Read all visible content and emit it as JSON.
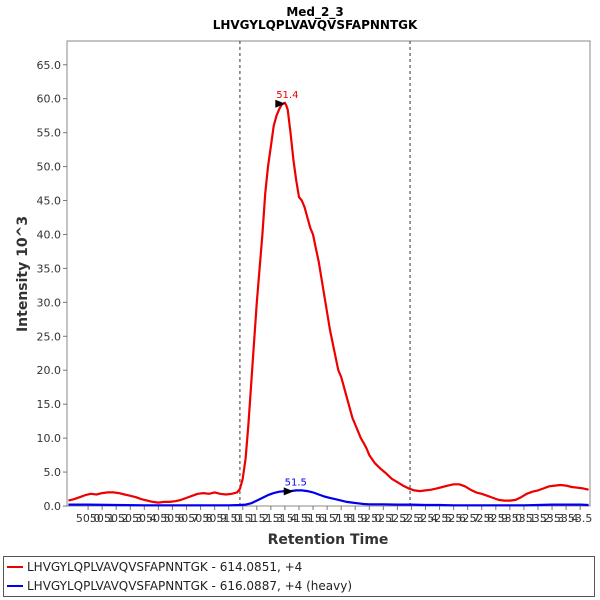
{
  "chart_data": {
    "type": "line",
    "title": "Med_2_3",
    "subtitle": "LHVGYLQPLVAVQVSFAPNNTGK",
    "xlabel": "Retention Time",
    "ylabel": "Intensity 10^3",
    "xlim": [
      49.85,
      53.57
    ],
    "ylim": [
      0,
      68.5
    ],
    "x_ticks": [
      "50.0",
      "50.1",
      "50.2",
      "50.3",
      "50.4",
      "50.5",
      "50.6",
      "50.7",
      "50.8",
      "50.9",
      "51.0",
      "51.1",
      "51.2",
      "51.3",
      "51.4",
      "51.5",
      "51.6",
      "51.7",
      "51.8",
      "51.9",
      "52.0",
      "52.1",
      "52.2",
      "52.3",
      "52.4",
      "52.5",
      "52.6",
      "52.7",
      "52.8",
      "52.9",
      "53.0",
      "53.1",
      "53.2",
      "53.3",
      "53.4",
      "53.5"
    ],
    "y_ticks": [
      "0.0",
      "5.0",
      "10.0",
      "15.0",
      "20.0",
      "25.0",
      "30.0",
      "35.0",
      "40.0",
      "45.0",
      "50.0",
      "55.0",
      "60.0",
      "65.0"
    ],
    "grid": false,
    "legend_position": "bottom",
    "boundaries": [
      51.08,
      52.29
    ],
    "series": [
      {
        "name": "LHVGYLQPLVAVQVSFAPNNTGK - 614.0851, +4",
        "color": "#ee0000",
        "peak_label": "51.4",
        "peak": [
          51.41,
          59.4
        ],
        "x": [
          49.86,
          49.9,
          49.94,
          49.98,
          50.02,
          50.06,
          50.1,
          50.14,
          50.18,
          50.22,
          50.26,
          50.3,
          50.34,
          50.38,
          50.42,
          50.46,
          50.5,
          50.54,
          50.58,
          50.62,
          50.66,
          50.7,
          50.74,
          50.78,
          50.82,
          50.86,
          50.9,
          50.94,
          50.98,
          51.02,
          51.06,
          51.08,
          51.1,
          51.12,
          51.14,
          51.16,
          51.18,
          51.2,
          51.22,
          51.24,
          51.26,
          51.28,
          51.3,
          51.32,
          51.34,
          51.36,
          51.38,
          51.4,
          51.41,
          51.42,
          51.44,
          51.46,
          51.48,
          51.5,
          51.52,
          51.54,
          51.56,
          51.58,
          51.6,
          51.62,
          51.64,
          51.66,
          51.68,
          51.7,
          51.72,
          51.74,
          51.76,
          51.78,
          51.8,
          51.82,
          51.84,
          51.86,
          51.88,
          51.9,
          51.92,
          51.94,
          51.96,
          51.98,
          52.0,
          52.04,
          52.08,
          52.12,
          52.16,
          52.2,
          52.24,
          52.28,
          52.32,
          52.36,
          52.4,
          52.44,
          52.48,
          52.52,
          52.56,
          52.6,
          52.64,
          52.68,
          52.72,
          52.76,
          52.8,
          52.84,
          52.88,
          52.92,
          52.96,
          53.0,
          53.04,
          53.08,
          53.12,
          53.16,
          53.2,
          53.24,
          53.28,
          53.32,
          53.36,
          53.4,
          53.44,
          53.48,
          53.52,
          53.56
        ],
        "y": [
          0.8,
          1.0,
          1.3,
          1.6,
          1.8,
          1.7,
          1.9,
          2.0,
          2.0,
          1.9,
          1.7,
          1.5,
          1.3,
          1.0,
          0.8,
          0.6,
          0.5,
          0.6,
          0.6,
          0.7,
          0.9,
          1.2,
          1.5,
          1.8,
          1.9,
          1.8,
          2.0,
          1.8,
          1.7,
          1.8,
          2.0,
          2.5,
          4.0,
          7.0,
          12.0,
          18.0,
          24.0,
          30.0,
          35.0,
          40.0,
          46.0,
          50.0,
          53.0,
          56.0,
          57.5,
          58.5,
          59.2,
          59.4,
          59.0,
          58.4,
          55.0,
          51.0,
          48.0,
          45.5,
          45.0,
          44.0,
          42.5,
          41.0,
          40.0,
          38.0,
          36.0,
          33.5,
          31.0,
          28.5,
          26.0,
          24.0,
          22.0,
          20.0,
          19.0,
          17.5,
          16.0,
          14.5,
          13.0,
          12.0,
          11.0,
          10.0,
          9.3,
          8.5,
          7.5,
          6.3,
          5.5,
          4.8,
          4.0,
          3.5,
          3.0,
          2.6,
          2.3,
          2.2,
          2.3,
          2.4,
          2.6,
          2.8,
          3.0,
          3.2,
          3.2,
          2.9,
          2.4,
          2.0,
          1.8,
          1.5,
          1.2,
          0.9,
          0.8,
          0.8,
          0.9,
          1.3,
          1.8,
          2.1,
          2.3,
          2.6,
          2.9,
          3.0,
          3.1,
          3.0,
          2.8,
          2.7,
          2.6,
          2.4
        ]
      },
      {
        "name": "LHVGYLQPLVAVQVSFAPNNTGK - 616.0887, +4 (heavy)",
        "color": "#0000ee",
        "peak_label": "51.5",
        "peak": [
          51.47,
          2.3
        ],
        "x": [
          49.86,
          50.0,
          50.2,
          50.4,
          50.6,
          50.8,
          51.0,
          51.08,
          51.12,
          51.16,
          51.2,
          51.24,
          51.28,
          51.32,
          51.36,
          51.4,
          51.44,
          51.48,
          51.52,
          51.56,
          51.6,
          51.64,
          51.68,
          51.72,
          51.76,
          51.8,
          51.84,
          51.88,
          51.92,
          51.96,
          52.0,
          52.1,
          52.2,
          52.3,
          52.4,
          52.5,
          52.6,
          52.7,
          52.8,
          52.9,
          53.0,
          53.1,
          53.2,
          53.3,
          53.4,
          53.5,
          53.56
        ],
        "y": [
          0.2,
          0.2,
          0.15,
          0.1,
          0.1,
          0.1,
          0.1,
          0.15,
          0.2,
          0.4,
          0.8,
          1.2,
          1.6,
          1.9,
          2.1,
          2.2,
          2.2,
          2.3,
          2.3,
          2.2,
          2.0,
          1.7,
          1.4,
          1.2,
          1.0,
          0.8,
          0.6,
          0.5,
          0.4,
          0.3,
          0.25,
          0.25,
          0.2,
          0.2,
          0.15,
          0.15,
          0.1,
          0.1,
          0.1,
          0.1,
          0.1,
          0.1,
          0.15,
          0.2,
          0.2,
          0.2,
          0.15
        ]
      }
    ]
  }
}
